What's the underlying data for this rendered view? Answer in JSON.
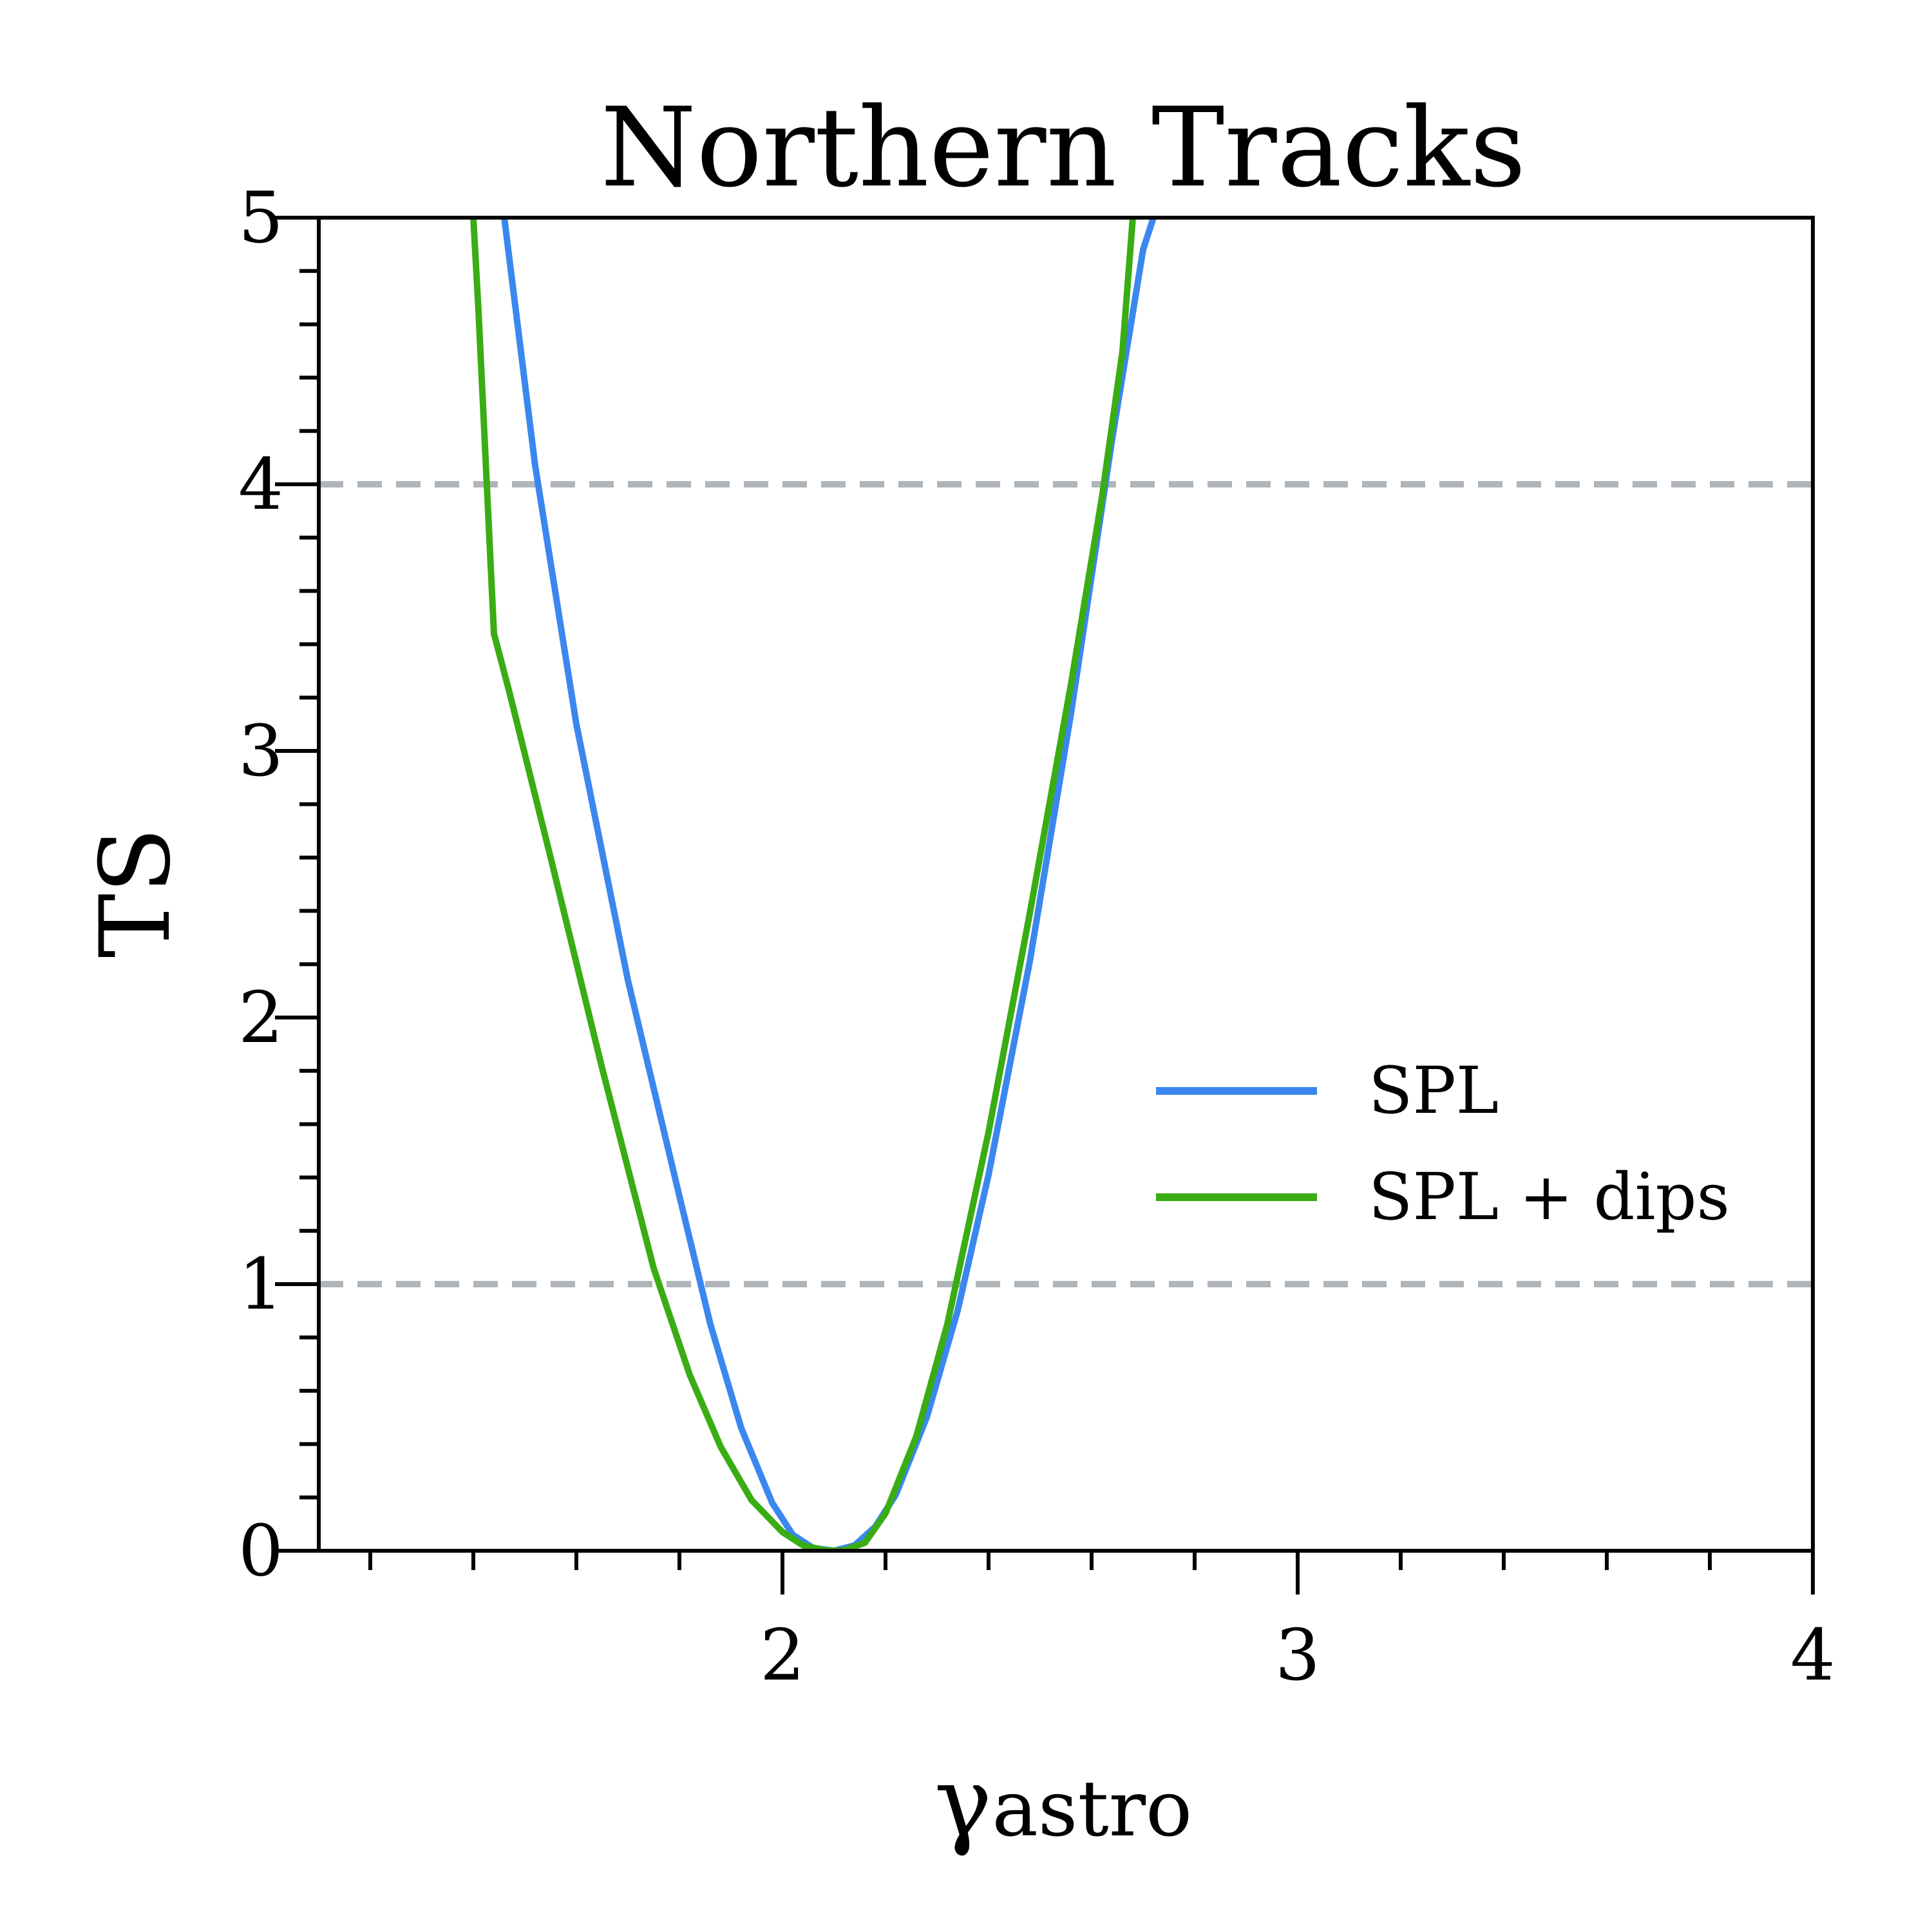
{
  "chart_data": {
    "type": "line",
    "title": "Northern Tracks",
    "xlabel_main": "γ",
    "xlabel_sub": "astro",
    "ylabel": "TS",
    "xlim": [
      1.1,
      4.0
    ],
    "ylim": [
      0,
      5
    ],
    "x_ticks": [
      2,
      3,
      4
    ],
    "x_tick_labels": [
      "2",
      "3",
      "4"
    ],
    "x_minor_step": 0.2,
    "y_ticks": [
      0,
      1,
      2,
      3,
      4,
      5
    ],
    "y_tick_labels": [
      "0",
      "1",
      "2",
      "3",
      "4",
      "5"
    ],
    "y_minor_step": 0.2,
    "grid": false,
    "legend_position": "center-right",
    "reference_lines": [
      {
        "y": 1,
        "style": "dashed",
        "color": "#b0b5ba"
      },
      {
        "y": 4,
        "style": "dashed",
        "color": "#b0b5ba"
      }
    ],
    "series": [
      {
        "name": "SPL",
        "color": "#3b87f0",
        "x": [
          1.46,
          1.52,
          1.6,
          1.7,
          1.8,
          1.86,
          1.92,
          1.98,
          2.02,
          2.06,
          2.1,
          2.14,
          2.18,
          2.22,
          2.28,
          2.34,
          2.4,
          2.48,
          2.56,
          2.64,
          2.7,
          2.72
        ],
        "y": [
          5.0,
          4.07,
          3.1,
          2.14,
          1.33,
          0.85,
          0.46,
          0.18,
          0.06,
          0.01,
          0.0,
          0.02,
          0.09,
          0.21,
          0.5,
          0.9,
          1.41,
          2.21,
          3.14,
          4.17,
          4.88,
          5.0
        ]
      },
      {
        "name": "SPL + dips",
        "color": "#3aac14",
        "x": [
          1.4,
          1.41,
          1.44,
          1.47,
          1.55,
          1.65,
          1.75,
          1.82,
          1.88,
          1.94,
          2.0,
          2.04,
          2.08,
          2.1,
          2.12,
          2.16,
          2.2,
          2.26,
          2.32,
          2.4,
          2.48,
          2.56,
          2.62,
          2.66,
          2.68
        ],
        "y": [
          5.0,
          4.65,
          3.44,
          3.22,
          2.6,
          1.81,
          1.06,
          0.66,
          0.39,
          0.19,
          0.07,
          0.02,
          0.003,
          0.0,
          0.002,
          0.03,
          0.14,
          0.43,
          0.85,
          1.57,
          2.39,
          3.25,
          3.95,
          4.5,
          5.0
        ]
      }
    ]
  }
}
